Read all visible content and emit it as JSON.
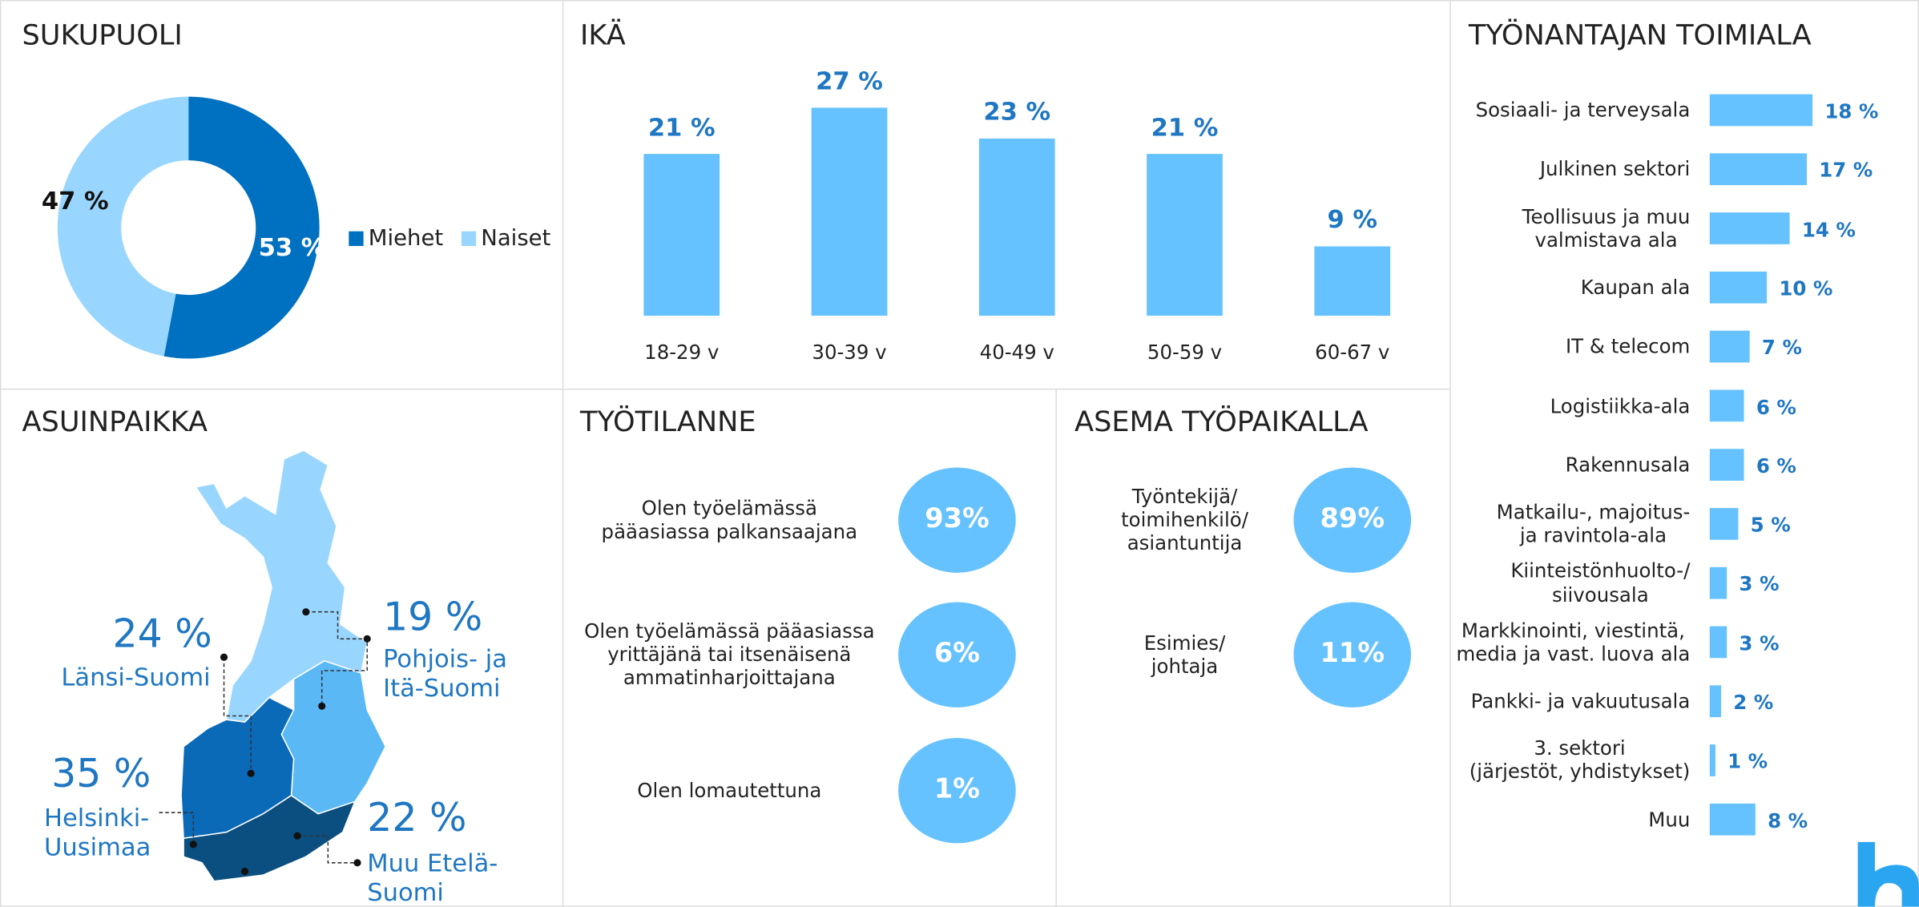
{
  "chart_data": [
    {
      "type": "pie",
      "title": "SUKUPUOLI",
      "categories": [
        "Miehet",
        "Naiset"
      ],
      "values": [
        53,
        47
      ],
      "value_labels": [
        "53 %",
        "47 %"
      ],
      "colors": [
        "#0070c0",
        "#99d6ff"
      ]
    },
    {
      "type": "bar",
      "title": "IKÄ",
      "categories": [
        "18-29 v",
        "30-39 v",
        "40-49 v",
        "50-59 v",
        "60-67 v"
      ],
      "values": [
        21,
        27,
        23,
        21,
        9
      ],
      "value_labels": [
        "21 %",
        "27 %",
        "23 %",
        "21 %",
        "9 %"
      ],
      "color": "#66c2ff"
    },
    {
      "type": "barh",
      "title": "TYÖNANTAJAN TOIMIALA",
      "categories": [
        "Sosiaali- ja terveysala",
        "Julkinen sektori",
        "Teollisuus ja muu\nvalmistava ala",
        "Kaupan ala",
        "IT & telecom",
        "Logistiikka-ala",
        "Rakennusala",
        "Matkailu-, majoitus-\nja ravintola-ala",
        "Kiinteistönhuolto-/\nsiivousala",
        "Markkinointi, viestintä,\nmedia ja vast. luova ala",
        "Pankki- ja vakuutusala",
        "3. sektori\n(järjestöt, yhdistykset)",
        "Muu"
      ],
      "values": [
        18,
        17,
        14,
        10,
        7,
        6,
        6,
        5,
        3,
        3,
        2,
        1,
        8
      ],
      "value_labels": [
        "18 %",
        "17 %",
        "14 %",
        "10 %",
        "7 %",
        "6 %",
        "6 %",
        "5 %",
        "3 %",
        "3 %",
        "2 %",
        "1 %",
        "8 %"
      ],
      "color": "#66c2ff"
    }
  ],
  "residence": {
    "title": "ASUINPAIKKA",
    "regions": [
      {
        "name": "Länsi-Suomi",
        "value": 24,
        "value_label": "24 %"
      },
      {
        "name": "Pohjois- ja\nItä-Suomi",
        "value": 19,
        "value_label": "19 %"
      },
      {
        "name": "Helsinki-\nUusimaa",
        "value": 35,
        "value_label": "35 %"
      },
      {
        "name": "Muu Etelä-\nSuomi",
        "value": 22,
        "value_label": "22 %"
      }
    ]
  },
  "work_status": {
    "title": "TYÖTILANNE",
    "items": [
      {
        "label": "Olen työelämässä\npääasiassa palkansaajana",
        "value": 93,
        "value_label": "93%"
      },
      {
        "label": "Olen työelämässä pääasiassa\nyrittäjänä tai itsenäisenä\nammatinharjoittajana",
        "value": 6,
        "value_label": "6%"
      },
      {
        "label": "Olen lomautettuna",
        "value": 1,
        "value_label": "1%"
      }
    ]
  },
  "position": {
    "title": "ASEMA TYÖPAIKALLA",
    "items": [
      {
        "label": "Työntekijä/\ntoimihenkilö/\nasiantuntija",
        "value": 89,
        "value_label": "89%"
      },
      {
        "label": "Esimies/\njohtaja",
        "value": 11,
        "value_label": "11%"
      }
    ]
  }
}
